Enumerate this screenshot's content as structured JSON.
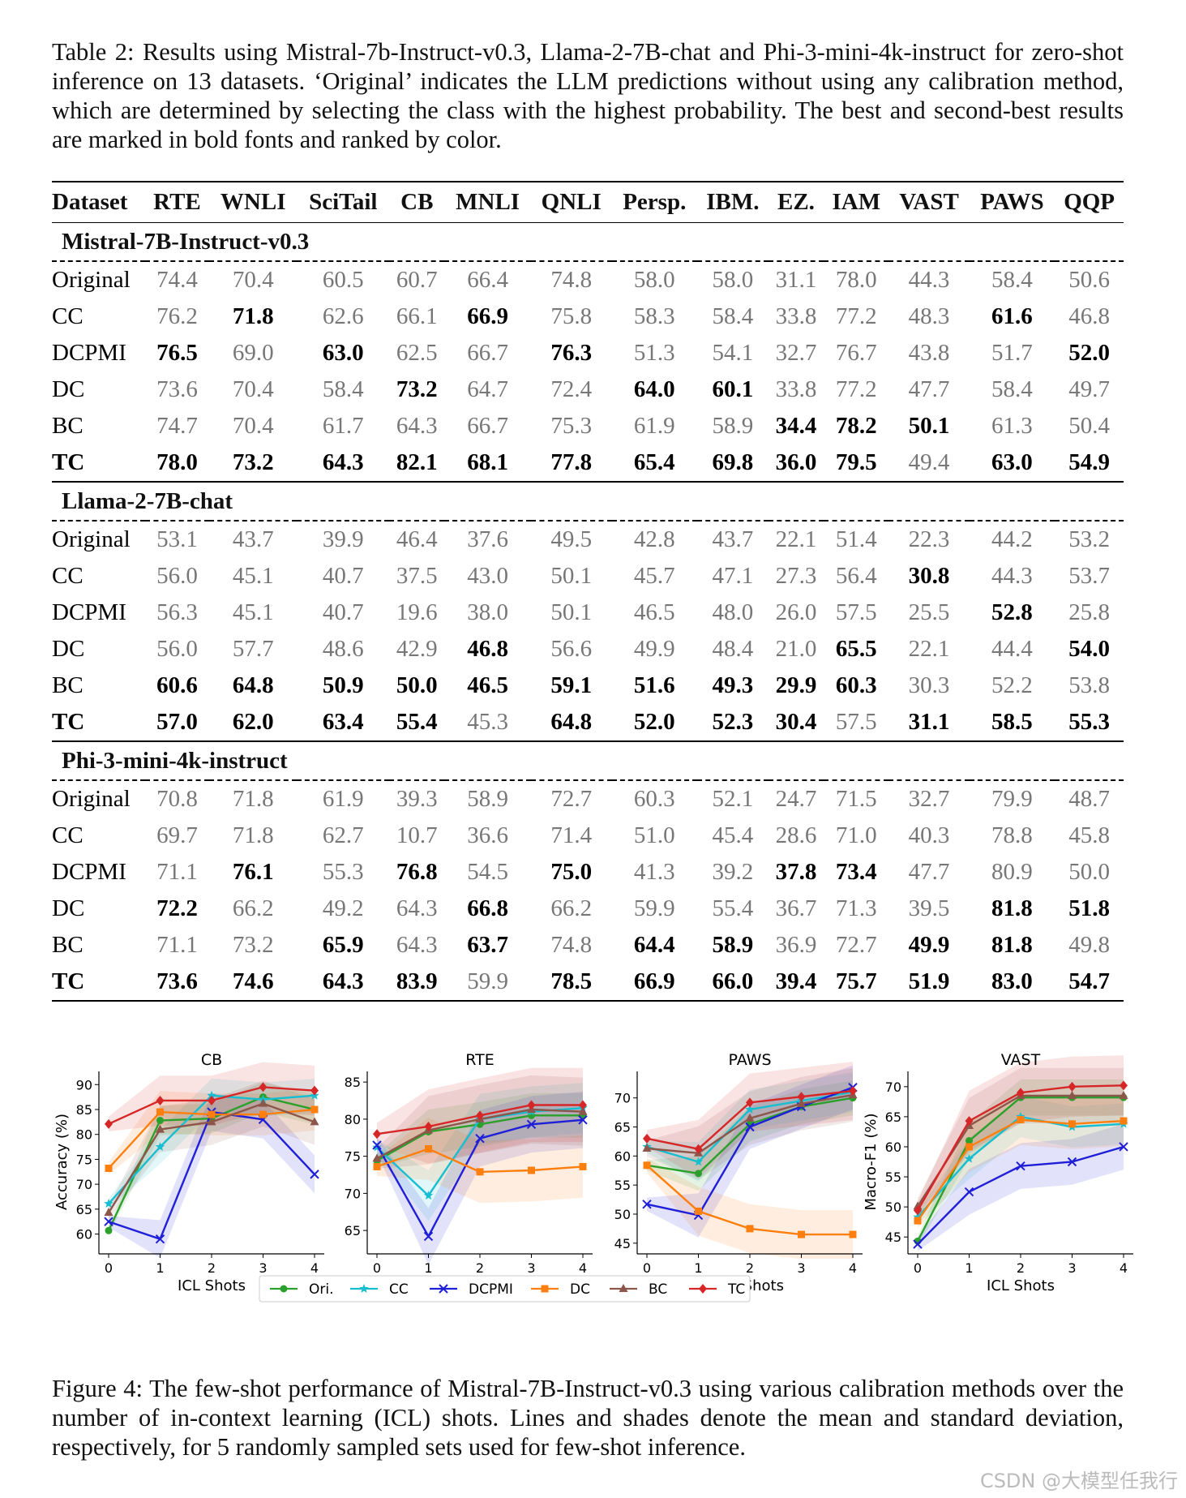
{
  "table_caption": "Table 2: Results using Mistral-7b-Instruct-v0.3, Llama-2-7B-chat and Phi-3-mini-4k-instruct for zero-shot inference on 13 datasets. ‘Original’ indicates the LLM predictions without using any calibration method, which are determined by selecting the class with the highest probability. The best and second-best results are marked in bold fonts and ranked by color.",
  "table": {
    "header": [
      "Dataset",
      "RTE",
      "WNLI",
      "SciTail",
      "CB",
      "MNLI",
      "QNLI",
      "Persp.",
      "IBM.",
      "EZ.",
      "IAM",
      "VAST",
      "PAWS",
      "QQP"
    ],
    "groups": [
      {
        "name": "Mistral-7B-Instruct-v0.3",
        "rows": [
          {
            "method": "Original",
            "values": [
              "74.4",
              "70.4",
              "60.5",
              "60.7",
              "66.4",
              "74.8",
              "58.0",
              "58.0",
              "31.1",
              "78.0",
              "44.3",
              "58.4",
              "50.6"
            ],
            "bold": []
          },
          {
            "method": "CC",
            "values": [
              "76.2",
              "71.8",
              "62.6",
              "66.1",
              "66.9",
              "75.8",
              "58.3",
              "58.4",
              "33.8",
              "77.2",
              "48.3",
              "61.6",
              "46.8"
            ],
            "bold": [
              1,
              4,
              11
            ]
          },
          {
            "method": "DCPMI",
            "values": [
              "76.5",
              "69.0",
              "63.0",
              "62.5",
              "66.7",
              "76.3",
              "51.3",
              "54.1",
              "32.7",
              "76.7",
              "43.8",
              "51.7",
              "52.0"
            ],
            "bold": [
              0,
              2,
              5,
              12
            ]
          },
          {
            "method": "DC",
            "values": [
              "73.6",
              "70.4",
              "58.4",
              "73.2",
              "64.7",
              "72.4",
              "64.0",
              "60.1",
              "33.8",
              "77.2",
              "47.7",
              "58.4",
              "49.7"
            ],
            "bold": [
              3,
              6,
              7
            ]
          },
          {
            "method": "BC",
            "values": [
              "74.7",
              "70.4",
              "61.7",
              "64.3",
              "66.7",
              "75.3",
              "61.9",
              "58.9",
              "34.4",
              "78.2",
              "50.1",
              "61.3",
              "50.4"
            ],
            "bold": [
              8,
              9,
              10
            ]
          },
          {
            "method": "TC",
            "values": [
              "78.0",
              "73.2",
              "64.3",
              "82.1",
              "68.1",
              "77.8",
              "65.4",
              "69.8",
              "36.0",
              "79.5",
              "49.4",
              "63.0",
              "54.9"
            ],
            "bold": [
              0,
              1,
              2,
              3,
              4,
              5,
              6,
              7,
              8,
              9,
              11,
              12
            ]
          }
        ]
      },
      {
        "name": "Llama-2-7B-chat",
        "rows": [
          {
            "method": "Original",
            "values": [
              "53.1",
              "43.7",
              "39.9",
              "46.4",
              "37.6",
              "49.5",
              "42.8",
              "43.7",
              "22.1",
              "51.4",
              "22.3",
              "44.2",
              "53.2"
            ],
            "bold": []
          },
          {
            "method": "CC",
            "values": [
              "56.0",
              "45.1",
              "40.7",
              "37.5",
              "43.0",
              "50.1",
              "45.7",
              "47.1",
              "27.3",
              "56.4",
              "30.8",
              "44.3",
              "53.7"
            ],
            "bold": [
              10
            ]
          },
          {
            "method": "DCPMI",
            "values": [
              "56.3",
              "45.1",
              "40.7",
              "19.6",
              "38.0",
              "50.1",
              "46.5",
              "48.0",
              "26.0",
              "57.5",
              "25.5",
              "52.8",
              "25.8"
            ],
            "bold": [
              11
            ]
          },
          {
            "method": "DC",
            "values": [
              "56.0",
              "57.7",
              "48.6",
              "42.9",
              "46.8",
              "56.6",
              "49.9",
              "48.4",
              "21.0",
              "65.5",
              "22.1",
              "44.4",
              "54.0"
            ],
            "bold": [
              4,
              9,
              12
            ]
          },
          {
            "method": "BC",
            "values": [
              "60.6",
              "64.8",
              "50.9",
              "50.0",
              "46.5",
              "59.1",
              "51.6",
              "49.3",
              "29.9",
              "60.3",
              "30.3",
              "52.2",
              "53.8"
            ],
            "bold": [
              0,
              1,
              2,
              3,
              4,
              5,
              6,
              7,
              8,
              9
            ]
          },
          {
            "method": "TC",
            "values": [
              "57.0",
              "62.0",
              "63.4",
              "55.4",
              "45.3",
              "64.8",
              "52.0",
              "52.3",
              "30.4",
              "57.5",
              "31.1",
              "58.5",
              "55.3"
            ],
            "bold": [
              0,
              1,
              2,
              3,
              5,
              6,
              7,
              8,
              10,
              11,
              12
            ]
          }
        ]
      },
      {
        "name": "Phi-3-mini-4k-instruct",
        "rows": [
          {
            "method": "Original",
            "values": [
              "70.8",
              "71.8",
              "61.9",
              "39.3",
              "58.9",
              "72.7",
              "60.3",
              "52.1",
              "24.7",
              "71.5",
              "32.7",
              "79.9",
              "48.7"
            ],
            "bold": []
          },
          {
            "method": "CC",
            "values": [
              "69.7",
              "71.8",
              "62.7",
              "10.7",
              "36.6",
              "71.4",
              "51.0",
              "45.4",
              "28.6",
              "71.0",
              "40.3",
              "78.8",
              "45.8"
            ],
            "bold": []
          },
          {
            "method": "DCPMI",
            "values": [
              "71.1",
              "76.1",
              "55.3",
              "76.8",
              "54.5",
              "75.0",
              "41.3",
              "39.2",
              "37.8",
              "73.4",
              "47.7",
              "80.9",
              "50.0"
            ],
            "bold": [
              1,
              3,
              5,
              8,
              9
            ]
          },
          {
            "method": "DC",
            "values": [
              "72.2",
              "66.2",
              "49.2",
              "64.3",
              "66.8",
              "66.2",
              "59.9",
              "55.4",
              "36.7",
              "71.3",
              "39.5",
              "81.8",
              "51.8"
            ],
            "bold": [
              0,
              4,
              11,
              12
            ]
          },
          {
            "method": "BC",
            "values": [
              "71.1",
              "73.2",
              "65.9",
              "64.3",
              "63.7",
              "74.8",
              "64.4",
              "58.9",
              "36.9",
              "72.7",
              "49.9",
              "81.8",
              "49.8"
            ],
            "bold": [
              2,
              4,
              6,
              7,
              10,
              11
            ]
          },
          {
            "method": "TC",
            "values": [
              "73.6",
              "74.6",
              "64.3",
              "83.9",
              "59.9",
              "78.5",
              "66.9",
              "66.0",
              "39.4",
              "75.7",
              "51.9",
              "83.0",
              "54.7"
            ],
            "bold": [
              0,
              1,
              2,
              3,
              5,
              6,
              7,
              8,
              9,
              10,
              11,
              12
            ]
          }
        ]
      }
    ]
  },
  "chart_data": [
    {
      "type": "line",
      "title": "CB",
      "xlabel": "ICL Shots",
      "ylabel": "Accuracy (%)",
      "x": [
        0,
        1,
        2,
        3,
        4
      ],
      "ylim": [
        57,
        92
      ],
      "yticks": [
        60,
        65,
        70,
        75,
        80,
        85,
        90
      ],
      "series": [
        {
          "name": "Ori.",
          "values": [
            60.7,
            82.8,
            83.2,
            87.5,
            85.0
          ]
        },
        {
          "name": "CC",
          "values": [
            66.1,
            77.5,
            87.8,
            87.0,
            87.8
          ]
        },
        {
          "name": "DCPMI",
          "values": [
            62.5,
            59.0,
            84.5,
            83.0,
            72.0
          ]
        },
        {
          "name": "DC",
          "values": [
            73.2,
            84.5,
            84.0,
            84.0,
            85.0
          ]
        },
        {
          "name": "BC",
          "values": [
            64.3,
            81.0,
            82.5,
            86.2,
            82.5
          ]
        },
        {
          "name": "TC",
          "values": [
            82.1,
            86.8,
            86.8,
            89.5,
            88.8
          ]
        }
      ]
    },
    {
      "type": "line",
      "title": "RTE",
      "xlabel": "ICL Shots",
      "ylabel": "",
      "x": [
        0,
        1,
        2,
        3,
        4
      ],
      "ylim": [
        62.5,
        86
      ],
      "yticks": [
        65,
        70,
        75,
        80,
        85
      ],
      "series": [
        {
          "name": "Ori.",
          "values": [
            74.4,
            78.3,
            79.3,
            80.5,
            80.5
          ]
        },
        {
          "name": "CC",
          "values": [
            76.2,
            69.7,
            80.0,
            81.0,
            81.5
          ]
        },
        {
          "name": "DCPMI",
          "values": [
            76.5,
            64.2,
            77.4,
            79.3,
            79.9
          ]
        },
        {
          "name": "DC",
          "values": [
            73.6,
            76.0,
            72.9,
            73.1,
            73.6
          ]
        },
        {
          "name": "BC",
          "values": [
            74.7,
            78.5,
            80.0,
            81.3,
            81.0
          ]
        },
        {
          "name": "TC",
          "values": [
            78.0,
            79.0,
            80.5,
            81.9,
            81.9
          ]
        }
      ]
    },
    {
      "type": "line",
      "title": "PAWS",
      "xlabel": "ICL Shots",
      "ylabel": "",
      "x": [
        0,
        1,
        2,
        3,
        4
      ],
      "ylim": [
        44,
        74
      ],
      "yticks": [
        45,
        50,
        55,
        60,
        65,
        70
      ],
      "series": [
        {
          "name": "Ori.",
          "values": [
            58.4,
            57.0,
            65.5,
            68.5,
            70.0
          ]
        },
        {
          "name": "CC",
          "values": [
            61.6,
            59.0,
            68.0,
            69.5,
            71.0
          ]
        },
        {
          "name": "DCPMI",
          "values": [
            51.7,
            49.8,
            65.0,
            68.5,
            71.8
          ]
        },
        {
          "name": "DC",
          "values": [
            58.4,
            50.5,
            47.5,
            46.5,
            46.5
          ]
        },
        {
          "name": "BC",
          "values": [
            61.3,
            60.5,
            66.5,
            69.0,
            70.5
          ]
        },
        {
          "name": "TC",
          "values": [
            63.0,
            61.2,
            69.2,
            70.2,
            71.2
          ]
        }
      ]
    },
    {
      "type": "line",
      "title": "VAST",
      "xlabel": "ICL Shots",
      "ylabel": "Macro-F1 (%)",
      "x": [
        0,
        1,
        2,
        3,
        4
      ],
      "ylim": [
        43,
        72
      ],
      "yticks": [
        45,
        50,
        55,
        60,
        65,
        70
      ],
      "series": [
        {
          "name": "Ori.",
          "values": [
            44.3,
            61.0,
            68.2,
            68.2,
            68.2
          ]
        },
        {
          "name": "CC",
          "values": [
            48.3,
            58.0,
            65.0,
            63.3,
            63.8
          ]
        },
        {
          "name": "DCPMI",
          "values": [
            43.8,
            52.5,
            56.8,
            57.5,
            60.0
          ]
        },
        {
          "name": "DC",
          "values": [
            47.7,
            60.0,
            64.5,
            63.8,
            64.3
          ]
        },
        {
          "name": "BC",
          "values": [
            50.1,
            63.5,
            68.5,
            68.5,
            68.5
          ]
        },
        {
          "name": "TC",
          "values": [
            49.4,
            64.3,
            69.0,
            70.0,
            70.2
          ]
        }
      ]
    }
  ],
  "legend": [
    {
      "name": "Ori.",
      "color": "#2ca02c",
      "marker": "circle"
    },
    {
      "name": "CC",
      "color": "#17becf",
      "marker": "star"
    },
    {
      "name": "DCPMI",
      "color": "#1f1fd8",
      "marker": "x"
    },
    {
      "name": "DC",
      "color": "#ff7f0e",
      "marker": "square"
    },
    {
      "name": "BC",
      "color": "#8c564b",
      "marker": "triangle"
    },
    {
      "name": "TC",
      "color": "#d62728",
      "marker": "diamond"
    }
  ],
  "figure_caption": "Figure 4: The few-shot performance of Mistral-7B-Instruct-v0.3 using various calibration methods over the number of in-context learning (ICL) shots. Lines and shades denote the mean and standard deviation, respectively, for 5 randomly sampled sets used for few-shot inference.",
  "watermark": "CSDN @大模型任我行"
}
